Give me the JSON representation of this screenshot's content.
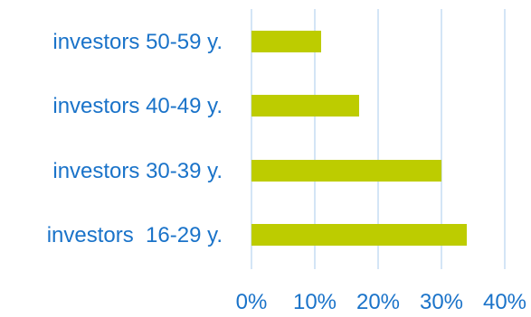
{
  "chart_data": {
    "type": "bar",
    "orientation": "horizontal",
    "categories": [
      "investors 50-59 y.",
      "investors 40-49 y.",
      "investors 30-39 y.",
      "investors  16-29 y."
    ],
    "values": [
      11,
      17,
      30,
      34
    ],
    "value_unit": "%",
    "xlim": [
      0,
      40
    ],
    "x_ticks": [
      "0%",
      "10%",
      "20%",
      "30%",
      "40%"
    ],
    "grid": "vertical",
    "legend": "none",
    "bar_color": "#bdcc00",
    "gridline_color": "#bcd7f2",
    "label_color": "#1a73c9"
  }
}
